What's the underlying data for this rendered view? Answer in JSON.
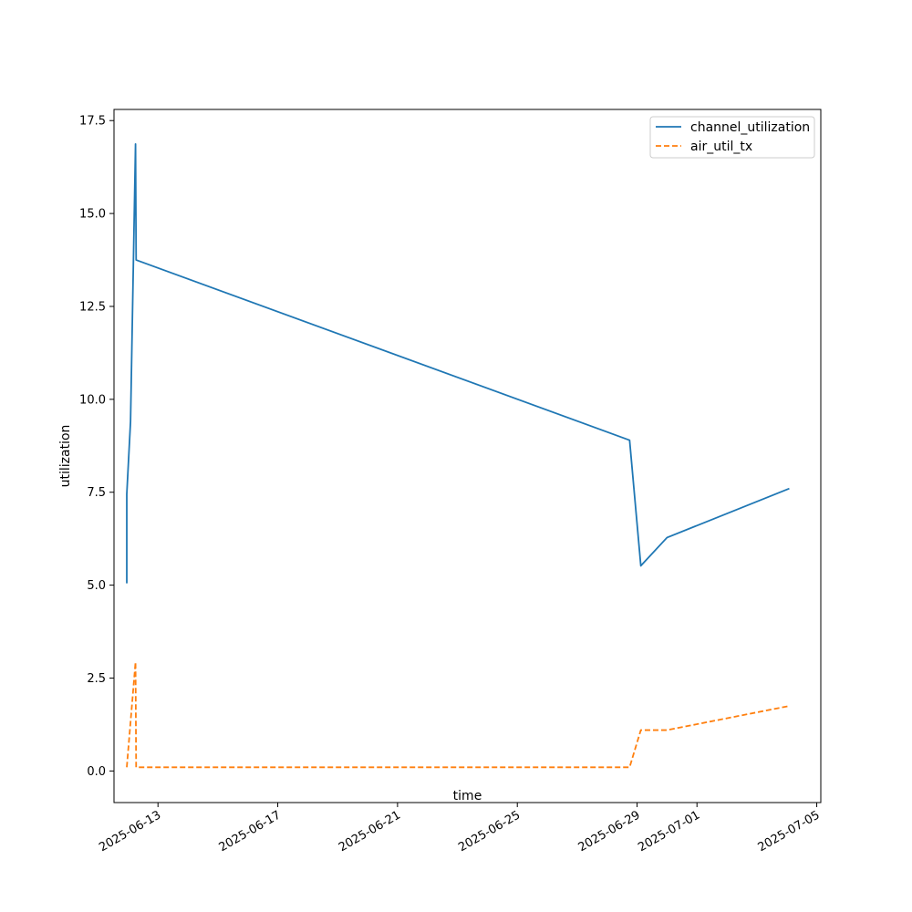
{
  "chart_data": {
    "type": "line",
    "title": "",
    "xlabel": "time",
    "ylabel": "utilization",
    "x_axis_type": "date",
    "xlim": [
      "2025-06-11T12:45",
      "2025-07-05T03:15"
    ],
    "ylim": [
      -0.85,
      17.8
    ],
    "xticks": [
      "2025-06-13",
      "2025-06-17",
      "2025-06-21",
      "2025-06-25",
      "2025-06-29",
      "2025-07-01",
      "2025-07-05"
    ],
    "yticks": [
      0.0,
      2.5,
      5.0,
      7.5,
      10.0,
      12.5,
      15.0,
      17.5
    ],
    "ytick_labels": [
      "0.0",
      "2.5",
      "5.0",
      "7.5",
      "10.0",
      "12.5",
      "15.0",
      "17.5"
    ],
    "grid": false,
    "legend_position": "top-right",
    "series": [
      {
        "name": "channel_utilization",
        "color": "#1f77b4",
        "style": "solid",
        "points": [
          [
            "2025-06-11T23:00",
            5.05
          ],
          [
            "2025-06-11T23:00",
            7.45
          ],
          [
            "2025-06-12T02:00",
            9.4
          ],
          [
            "2025-06-12T06:00",
            16.87
          ],
          [
            "2025-06-12T06:30",
            13.75
          ],
          [
            "2025-06-28T18:00",
            8.9
          ],
          [
            "2025-06-29T03:00",
            5.52
          ],
          [
            "2025-06-30T00:00",
            6.28
          ],
          [
            "2025-07-04T02:00",
            7.6
          ]
        ]
      },
      {
        "name": "air_util_tx",
        "color": "#ff7f0e",
        "style": "dashed",
        "points": [
          [
            "2025-06-11T23:00",
            0.1
          ],
          [
            "2025-06-12T06:00",
            2.93
          ],
          [
            "2025-06-12T06:30",
            0.1
          ],
          [
            "2025-06-28T18:00",
            0.1
          ],
          [
            "2025-06-29T03:00",
            1.1
          ],
          [
            "2025-06-30T00:00",
            1.1
          ],
          [
            "2025-07-04T02:00",
            1.75
          ]
        ]
      }
    ]
  }
}
